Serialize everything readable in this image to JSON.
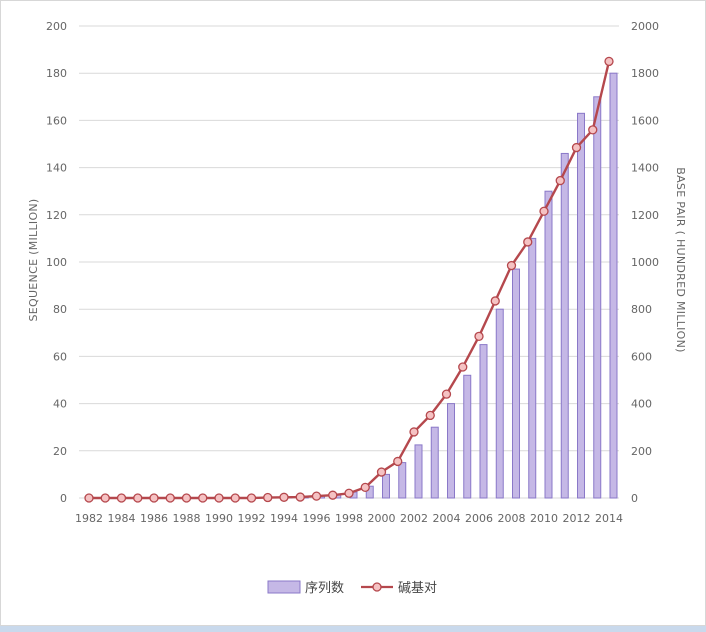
{
  "chart_data": {
    "type": "bar+line",
    "title": "",
    "categories": [
      "1982",
      "1983",
      "1984",
      "1985",
      "1986",
      "1987",
      "1988",
      "1989",
      "1990",
      "1991",
      "1992",
      "1993",
      "1994",
      "1995",
      "1996",
      "1997",
      "1998",
      "1999",
      "2000",
      "2001",
      "2002",
      "2003",
      "2004",
      "2005",
      "2006",
      "2007",
      "2008",
      "2009",
      "2010",
      "2011",
      "2012",
      "2013",
      "2014"
    ],
    "xtick_labels": [
      "1982",
      "1984",
      "1986",
      "1988",
      "1990",
      "1992",
      "1994",
      "1996",
      "1998",
      "2000",
      "2002",
      "2004",
      "2006",
      "2008",
      "2010",
      "2012",
      "2014"
    ],
    "left_axis": {
      "label": "SEQUENCE  (MILLION)",
      "ylim": [
        0,
        200
      ],
      "ticks": [
        0,
        20,
        40,
        60,
        80,
        100,
        120,
        140,
        160,
        180,
        200
      ]
    },
    "right_axis": {
      "label": "BASE PAIR ( HUNDRED MILLION)",
      "ylim": [
        0,
        2000
      ],
      "ticks": [
        0,
        200,
        400,
        600,
        800,
        1000,
        1200,
        1400,
        1600,
        1800,
        2000
      ]
    },
    "grid": true,
    "legend_position": "bottom",
    "series": [
      {
        "name": "序列数",
        "type": "bar",
        "axis": "left",
        "color": "#c5b8e6",
        "stroke": "#8a78c8",
        "values": [
          0.0,
          0.0,
          0.0,
          0.0,
          0.0,
          0.0,
          0.0,
          0.0,
          0.0,
          0.1,
          0.1,
          0.2,
          0.2,
          0.5,
          1.0,
          1.5,
          2.5,
          5.0,
          10.0,
          15.0,
          22.5,
          30.0,
          40.0,
          52.0,
          65.0,
          80.0,
          97.0,
          110.0,
          130.0,
          146.0,
          163.0,
          170.0,
          180.0
        ]
      },
      {
        "name": "碱基对",
        "type": "line",
        "axis": "right",
        "color": "#b5484d",
        "marker_fill": "#f5c2c3",
        "values": [
          0,
          0,
          0,
          0,
          0,
          0,
          0,
          0,
          0,
          0,
          0,
          2,
          3,
          4,
          8,
          12,
          20,
          45,
          110,
          155,
          280,
          350,
          440,
          555,
          685,
          835,
          985,
          1085,
          1215,
          1345,
          1485,
          1560,
          1850
        ]
      }
    ]
  }
}
